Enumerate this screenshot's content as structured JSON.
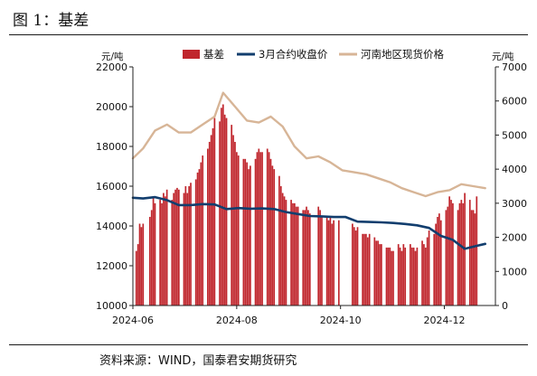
{
  "title": "图 1：基差",
  "source": "资料来源：WIND，国泰君安期货研究",
  "colors": {
    "basis": "#c0262d",
    "futures": "#123e6e",
    "spot": "#d7b597"
  },
  "chart_data": {
    "type": "bar+line",
    "title": "基差",
    "y_left": {
      "unit": "元/吨",
      "range": [
        10000,
        22000
      ],
      "ticks": [
        10000,
        12000,
        14000,
        16000,
        18000,
        20000,
        22000
      ]
    },
    "y_right": {
      "unit": "元/吨",
      "range": [
        0,
        7000
      ],
      "ticks": [
        0,
        1000,
        2000,
        3000,
        4000,
        5000,
        6000,
        7000
      ]
    },
    "x_range": [
      "2024-06-01",
      "2024-12-31"
    ],
    "x_ticks": [
      "2024-06",
      "2024-08",
      "2024-10",
      "2024-12"
    ],
    "legend": [
      "基差",
      "3月合约收盘价",
      "河南地区现货价格"
    ],
    "series": [
      {
        "name": "基差",
        "type": "bar",
        "axis": "right",
        "x": [
          "2024-06-03",
          "2024-06-04",
          "2024-06-05",
          "2024-06-06",
          "2024-06-07",
          "2024-06-11",
          "2024-06-12",
          "2024-06-13",
          "2024-06-14",
          "2024-06-17",
          "2024-06-18",
          "2024-06-19",
          "2024-06-20",
          "2024-06-21",
          "2024-06-24",
          "2024-06-25",
          "2024-06-26",
          "2024-06-27",
          "2024-06-28",
          "2024-07-01",
          "2024-07-02",
          "2024-07-03",
          "2024-07-04",
          "2024-07-05",
          "2024-07-08",
          "2024-07-09",
          "2024-07-10",
          "2024-07-11",
          "2024-07-12",
          "2024-07-15",
          "2024-07-16",
          "2024-07-17",
          "2024-07-18",
          "2024-07-19",
          "2024-07-22",
          "2024-07-23",
          "2024-07-24",
          "2024-07-25",
          "2024-07-26",
          "2024-07-29",
          "2024-07-30",
          "2024-07-31",
          "2024-08-01",
          "2024-08-02",
          "2024-08-05",
          "2024-08-06",
          "2024-08-07",
          "2024-08-08",
          "2024-08-09",
          "2024-08-12",
          "2024-08-13",
          "2024-08-14",
          "2024-08-15",
          "2024-08-16",
          "2024-08-19",
          "2024-08-20",
          "2024-08-21",
          "2024-08-22",
          "2024-08-23",
          "2024-08-26",
          "2024-08-27",
          "2024-08-28",
          "2024-08-29",
          "2024-08-30",
          "2024-09-02",
          "2024-09-03",
          "2024-09-04",
          "2024-09-05",
          "2024-09-06",
          "2024-09-09",
          "2024-09-10",
          "2024-09-11",
          "2024-09-12",
          "2024-09-13",
          "2024-09-18",
          "2024-09-19",
          "2024-09-20",
          "2024-09-23",
          "2024-09-24",
          "2024-09-25",
          "2024-09-26",
          "2024-09-27",
          "2024-09-30",
          "2024-10-08",
          "2024-10-09",
          "2024-10-10",
          "2024-10-11",
          "2024-10-14",
          "2024-10-15",
          "2024-10-16",
          "2024-10-17",
          "2024-10-18",
          "2024-10-21",
          "2024-10-22",
          "2024-10-23",
          "2024-10-24",
          "2024-10-25",
          "2024-10-28",
          "2024-10-29",
          "2024-10-30",
          "2024-10-31",
          "2024-11-01",
          "2024-11-04",
          "2024-11-05",
          "2024-11-06",
          "2024-11-07",
          "2024-11-08",
          "2024-11-11",
          "2024-11-12",
          "2024-11-13",
          "2024-11-14",
          "2024-11-15",
          "2024-11-18",
          "2024-11-19",
          "2024-11-20",
          "2024-11-21",
          "2024-11-22",
          "2024-11-25",
          "2024-11-26",
          "2024-11-27",
          "2024-11-28",
          "2024-11-29",
          "2024-12-02",
          "2024-12-03",
          "2024-12-04",
          "2024-12-05",
          "2024-12-06",
          "2024-12-09",
          "2024-12-10",
          "2024-12-11",
          "2024-12-12",
          "2024-12-13",
          "2024-12-16",
          "2024-12-17",
          "2024-12-18",
          "2024-12-19",
          "2024-12-20"
        ],
        "values": [
          1600,
          1800,
          2400,
          2300,
          2400,
          2600,
          2800,
          3200,
          3000,
          3100,
          3000,
          3300,
          3200,
          3400,
          3100,
          3300,
          3400,
          3450,
          3400,
          3300,
          3500,
          3300,
          3500,
          3600,
          3700,
          3900,
          4000,
          4200,
          4400,
          4600,
          4800,
          5000,
          5200,
          5500,
          5400,
          5800,
          5900,
          5600,
          5500,
          5300,
          5000,
          4800,
          4500,
          4400,
          4300,
          4300,
          4200,
          4000,
          4100,
          4300,
          4500,
          4600,
          4500,
          4500,
          4600,
          4500,
          4300,
          4100,
          4000,
          3800,
          3500,
          3300,
          3200,
          3100,
          3100,
          3000,
          3000,
          2900,
          2900,
          2800,
          2800,
          2900,
          2800,
          2700,
          2900,
          2800,
          2600,
          2600,
          2500,
          2600,
          2400,
          2500,
          2500,
          2400,
          2300,
          2200,
          2300,
          2100,
          2100,
          2100,
          2000,
          2100,
          2000,
          1900,
          1900,
          1800,
          1800,
          1700,
          1700,
          1700,
          1600,
          1600,
          1800,
          1700,
          1600,
          1800,
          1700,
          1800,
          1700,
          1700,
          1600,
          1700,
          1900,
          1800,
          1700,
          2000,
          2200,
          2100,
          2400,
          2600,
          2700,
          2500,
          2800,
          2900,
          3200,
          3100,
          3000,
          2800,
          3000,
          3100,
          3000,
          3300,
          3100,
          2800,
          2800,
          2700,
          3200
        ]
      },
      {
        "name": "3月合约收盘价",
        "type": "line",
        "axis": "left",
        "x": [
          "2024-06-01",
          "2024-06-07",
          "2024-06-14",
          "2024-06-21",
          "2024-06-28",
          "2024-07-05",
          "2024-07-12",
          "2024-07-19",
          "2024-07-26",
          "2024-08-02",
          "2024-08-09",
          "2024-08-16",
          "2024-08-23",
          "2024-08-30",
          "2024-09-06",
          "2024-09-13",
          "2024-09-20",
          "2024-09-27",
          "2024-10-04",
          "2024-10-11",
          "2024-10-18",
          "2024-10-25",
          "2024-11-01",
          "2024-11-08",
          "2024-11-15",
          "2024-11-22",
          "2024-11-29",
          "2024-12-06",
          "2024-12-13",
          "2024-12-20",
          "2024-12-25"
        ],
        "values": [
          15420,
          15380,
          15450,
          15300,
          15050,
          15050,
          15100,
          15080,
          14850,
          14900,
          14870,
          14880,
          14850,
          14700,
          14600,
          14500,
          14480,
          14450,
          14450,
          14220,
          14200,
          14180,
          14150,
          14100,
          14030,
          13900,
          13500,
          13300,
          12850,
          13000,
          13100
        ]
      },
      {
        "name": "河南地区现货价格",
        "type": "line",
        "axis": "left",
        "x": [
          "2024-06-01",
          "2024-06-07",
          "2024-06-14",
          "2024-06-21",
          "2024-06-28",
          "2024-07-05",
          "2024-07-12",
          "2024-07-19",
          "2024-07-24",
          "2024-07-31",
          "2024-08-07",
          "2024-08-14",
          "2024-08-21",
          "2024-08-28",
          "2024-09-04",
          "2024-09-11",
          "2024-09-18",
          "2024-09-25",
          "2024-10-02",
          "2024-10-09",
          "2024-10-16",
          "2024-10-23",
          "2024-10-30",
          "2024-11-06",
          "2024-11-13",
          "2024-11-20",
          "2024-11-27",
          "2024-12-04",
          "2024-12-11",
          "2024-12-18",
          "2024-12-25"
        ],
        "values": [
          17400,
          17900,
          18800,
          19100,
          18700,
          18700,
          19100,
          19500,
          20700,
          20000,
          19300,
          19200,
          19500,
          19000,
          18000,
          17400,
          17500,
          17200,
          16800,
          16700,
          16600,
          16400,
          16200,
          15900,
          15700,
          15500,
          15700,
          15800,
          16100,
          16000,
          15900
        ]
      }
    ]
  }
}
